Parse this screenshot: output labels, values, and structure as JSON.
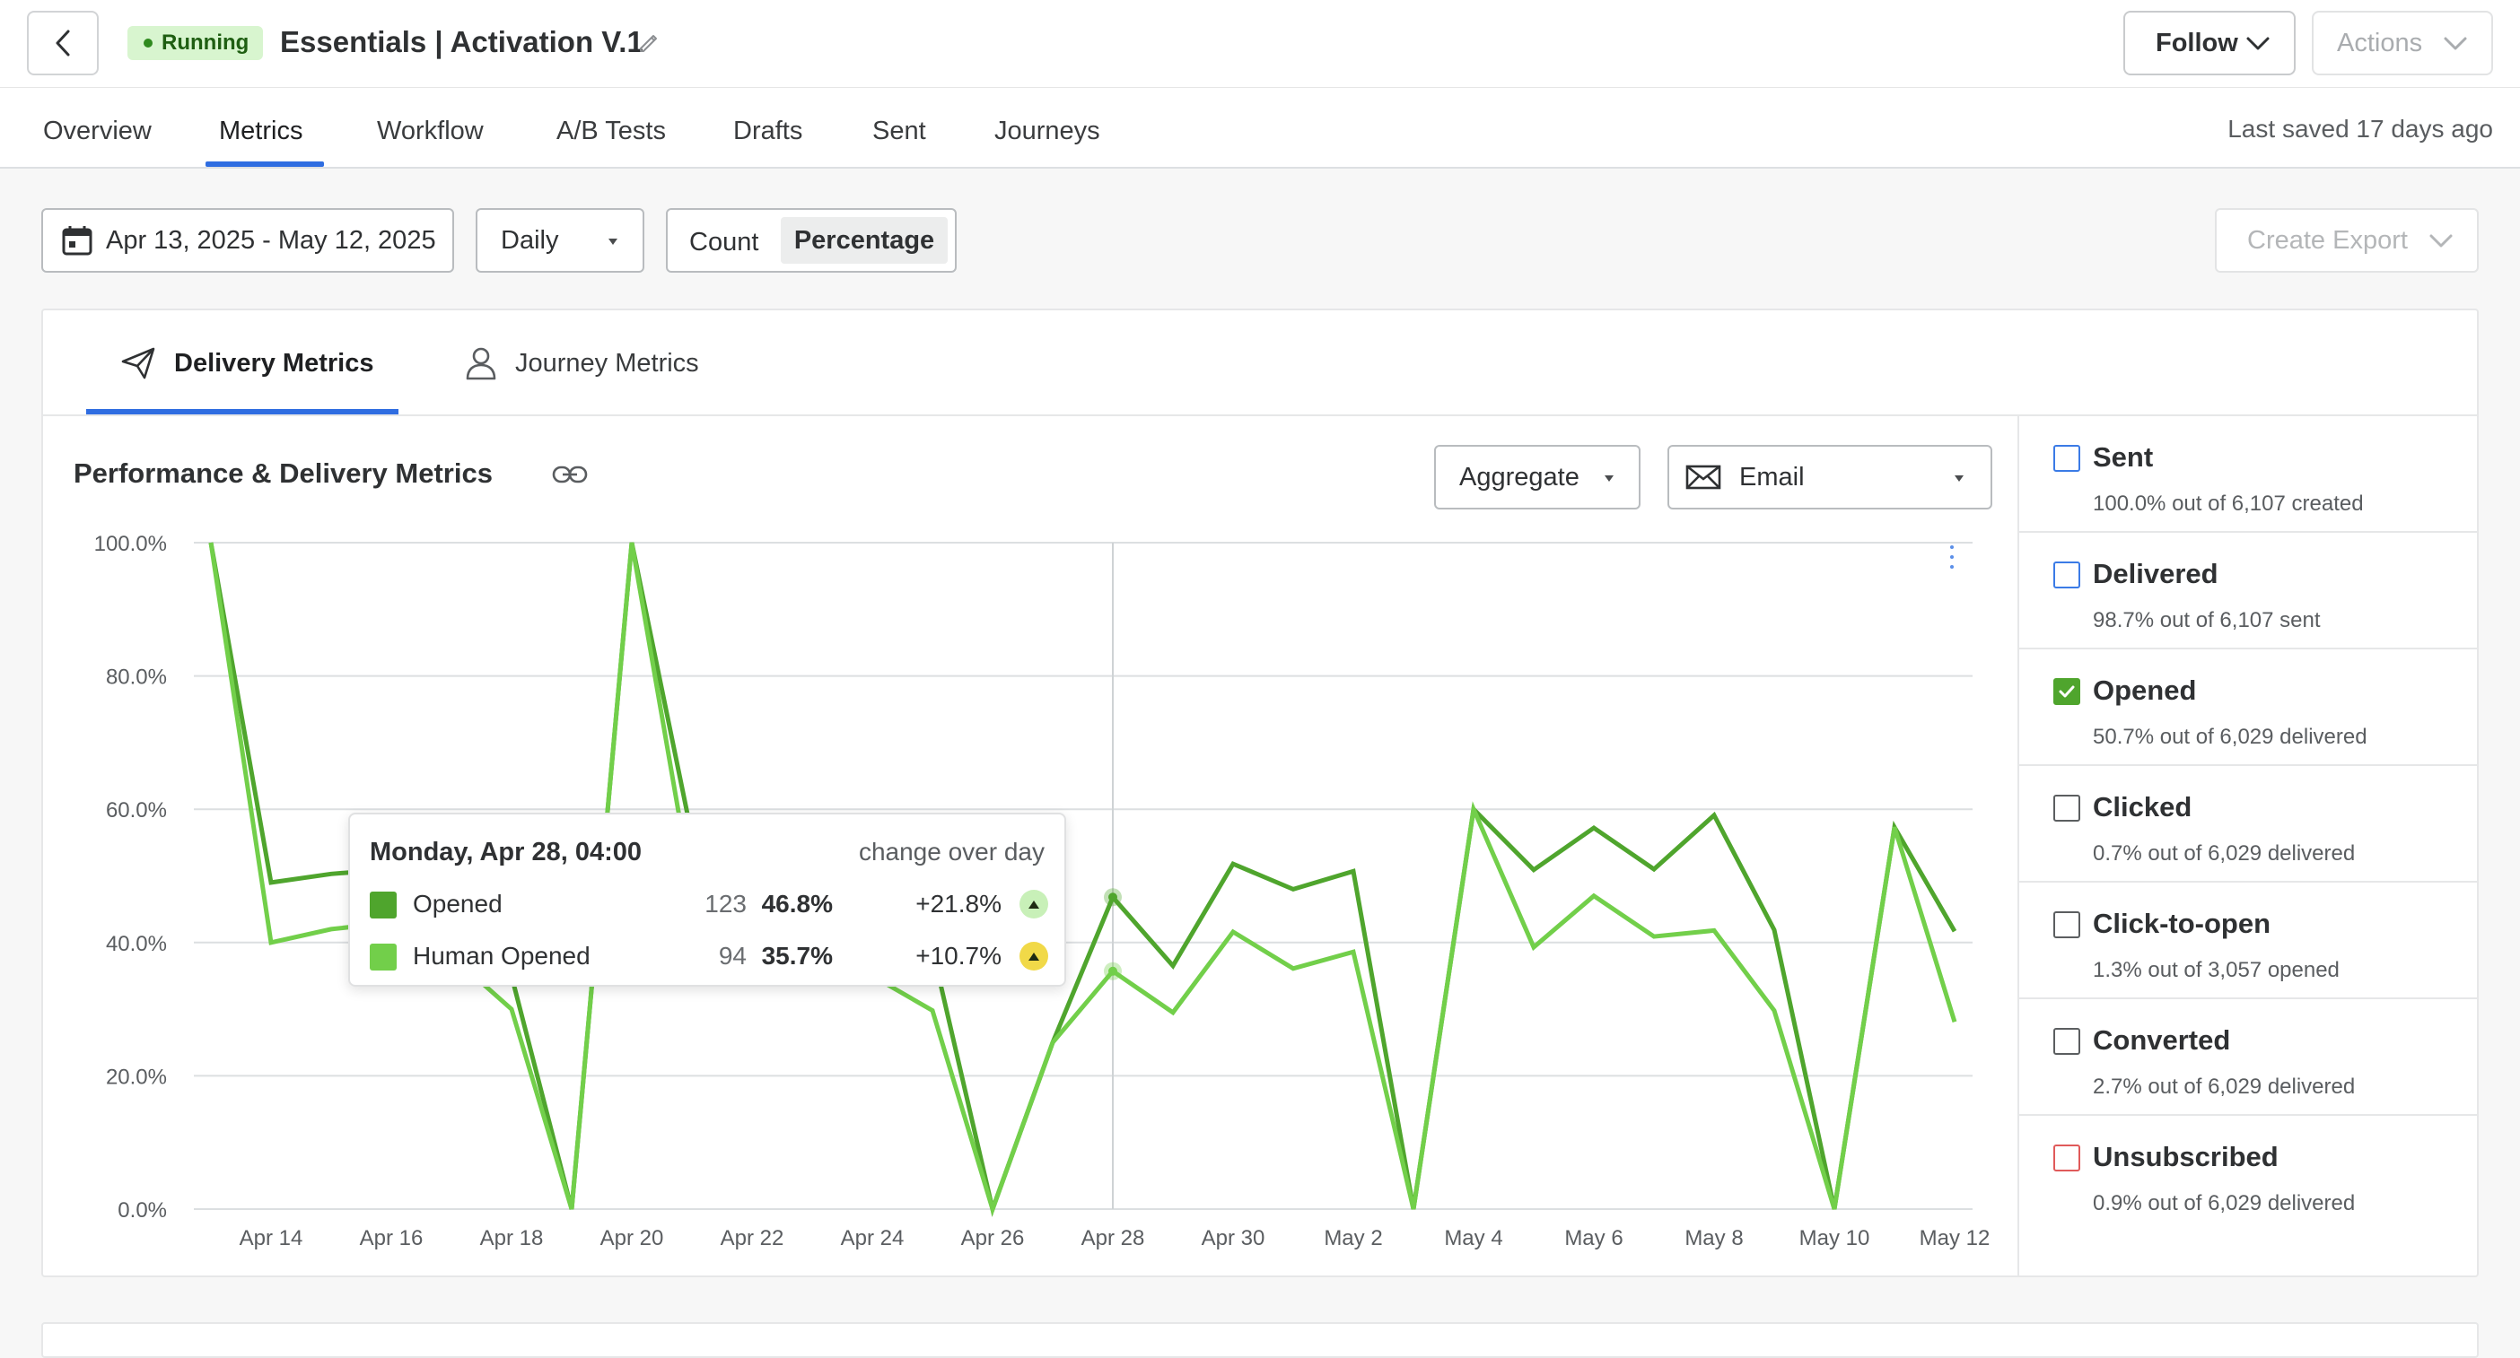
{
  "header": {
    "status": "Running",
    "title": "Essentials | Activation V.1",
    "follow_label": "Follow",
    "actions_label": "Actions"
  },
  "tabs": [
    {
      "label": "Overview",
      "active": false
    },
    {
      "label": "Metrics",
      "active": true
    },
    {
      "label": "Workflow",
      "active": false
    },
    {
      "label": "A/B Tests",
      "active": false
    },
    {
      "label": "Drafts",
      "active": false
    },
    {
      "label": "Sent",
      "active": false
    },
    {
      "label": "Journeys",
      "active": false
    }
  ],
  "last_saved": "Last saved 17 days ago",
  "filters": {
    "date_range": "Apr 13, 2025 - May 12, 2025",
    "interval": "Daily",
    "toggle_count": "Count",
    "toggle_percentage": "Percentage",
    "toggle_selected": "Percentage",
    "export_label": "Create Export"
  },
  "subtabs": [
    {
      "label": "Delivery Metrics",
      "active": true
    },
    {
      "label": "Journey Metrics",
      "active": false
    }
  ],
  "chart_panel": {
    "title": "Performance & Delivery Metrics",
    "aggregate_label": "Aggregate",
    "channel_label": "Email"
  },
  "metrics": [
    {
      "name": "Sent",
      "desc": "100.0% out of 6,107 created",
      "checked": false,
      "color": "#3b7be6"
    },
    {
      "name": "Delivered",
      "desc": "98.7% out of 6,107 sent",
      "checked": false,
      "color": "#3b7be6"
    },
    {
      "name": "Opened",
      "desc": "50.7% out of 6,029 delivered",
      "checked": true,
      "color": "#4fa52d"
    },
    {
      "name": "Clicked",
      "desc": "0.7% out of 6,029 delivered",
      "checked": false,
      "color": "#5b5e60"
    },
    {
      "name": "Click-to-open",
      "desc": "1.3% out of 3,057 opened",
      "checked": false,
      "color": "#5b5e60"
    },
    {
      "name": "Converted",
      "desc": "2.7% out of 6,029 delivered",
      "checked": false,
      "color": "#5b5e60"
    },
    {
      "name": "Unsubscribed",
      "desc": "0.9% out of 6,029 delivered",
      "checked": false,
      "color": "#e05a5a"
    }
  ],
  "tooltip": {
    "date": "Monday, Apr 28, 04:00",
    "change_label": "change over day",
    "rows": [
      {
        "name": "Opened",
        "count": "123",
        "pct": "46.8%",
        "delta": "+21.8%",
        "color": "#4fa52d",
        "arrow_color": "#c8f0b8"
      },
      {
        "name": "Human Opened",
        "count": "94",
        "pct": "35.7%",
        "delta": "+10.7%",
        "color": "#72cf4a",
        "arrow_color": "#f1d948"
      }
    ]
  },
  "chart_data": {
    "type": "line",
    "x": [
      "Apr 13",
      "Apr 14",
      "Apr 15",
      "Apr 16",
      "Apr 17",
      "Apr 18",
      "Apr 19",
      "Apr 20",
      "Apr 21",
      "Apr 22",
      "Apr 23",
      "Apr 24",
      "Apr 25",
      "Apr 26",
      "Apr 27",
      "Apr 28",
      "Apr 29",
      "Apr 30",
      "May 1",
      "May 2",
      "May 3",
      "May 4",
      "May 5",
      "May 6",
      "May 7",
      "May 8",
      "May 9",
      "May 10",
      "May 11",
      "May 12"
    ],
    "tick_labels": [
      "Apr 14",
      "Apr 16",
      "Apr 18",
      "Apr 20",
      "Apr 22",
      "Apr 24",
      "Apr 26",
      "Apr 28",
      "Apr 30",
      "May 2",
      "May 4",
      "May 6",
      "May 8",
      "May 10",
      "May 12"
    ],
    "y_ticks": [
      "0.0%",
      "20.0%",
      "40.0%",
      "60.0%",
      "80.0%",
      "100.0%"
    ],
    "ylim": [
      0,
      100
    ],
    "grid": true,
    "hover_x": "Apr 28",
    "series": [
      {
        "name": "Opened",
        "color": "#4fa52d",
        "values": [
          100,
          49,
          50.3,
          51,
          48,
          35,
          0,
          100,
          56,
          49,
          45,
          40,
          39,
          0,
          25,
          46.8,
          36.5,
          51.8,
          48,
          50.7,
          0,
          60,
          50.9,
          57.2,
          51,
          59.1,
          41.9,
          0,
          57.3,
          41.7
        ]
      },
      {
        "name": "Human Opened",
        "color": "#72cf4a",
        "values": [
          100,
          40,
          42,
          43,
          38,
          30,
          0,
          100,
          48,
          40,
          36,
          35,
          29.8,
          0,
          25,
          35.7,
          29.5,
          41.6,
          36.1,
          38.6,
          0,
          60,
          39.3,
          47,
          40.9,
          41.8,
          29.8,
          0,
          57.3,
          28.1
        ]
      }
    ]
  }
}
